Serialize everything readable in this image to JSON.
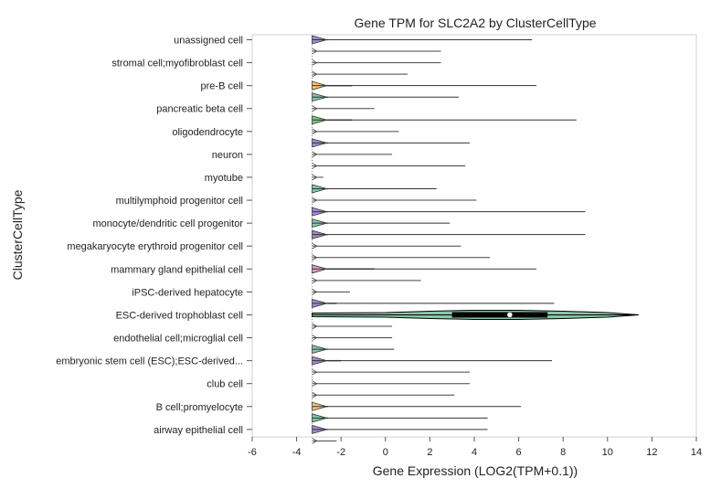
{
  "chart_data": {
    "type": "violin",
    "title": "Gene TPM for SLC2A2 by ClusterCellType",
    "xlabel": "Gene Expression (LOG2(TPM+0.1))",
    "ylabel": "ClusterCellType",
    "xlim": [
      -6,
      14
    ],
    "xticks": [
      -6,
      -4,
      -2,
      0,
      2,
      4,
      6,
      8,
      10,
      12,
      14
    ],
    "xtick_labels": [
      "-6",
      "-4",
      "-2",
      "0",
      "2",
      "4",
      "6",
      "8",
      "10",
      "12",
      "14"
    ],
    "grid": false,
    "labeled_categories": [
      "unassigned cell",
      "stromal cell;myofibroblast cell",
      "pre-B cell",
      "pancreatic beta cell",
      "oligodendrocyte",
      "neuron",
      "myotube",
      "multilymphoid progenitor cell",
      "monocyte/dendritic cell progenitor",
      "megakaryocyte erythroid progenitor cell",
      "mammary gland epithelial cell",
      "iPSC-derived hepatocyte",
      "ESC-derived trophoblast cell",
      "endothelial cell;microglial cell",
      "embryonic stem cell (ESC);ESC-derived...",
      "club cell",
      "B cell;promyelocyte",
      "airway epithelial cell"
    ],
    "rows": [
      {
        "fill": "#a28ad2",
        "spike_x": -2.6,
        "whisker_max": 6.6,
        "labeled": true
      },
      {
        "fill": null,
        "spike_x": null,
        "whisker_max": 2.5
      },
      {
        "fill": null,
        "spike_x": null,
        "whisker_max": 2.5,
        "labeled": true
      },
      {
        "fill": null,
        "spike_x": null,
        "whisker_max": 1.0
      },
      {
        "fill": "#f7c578",
        "spike_x": -1.5,
        "whisker_max": 6.8,
        "labeled": true
      },
      {
        "fill": "#88c6a8",
        "spike_x": -2.6,
        "whisker_max": 3.3
      },
      {
        "fill": null,
        "spike_x": null,
        "whisker_max": -0.5,
        "labeled": true
      },
      {
        "fill": "#79c97c",
        "spike_x": -1.5,
        "whisker_max": 8.6
      },
      {
        "fill": null,
        "spike_x": null,
        "whisker_max": 0.6,
        "labeled": true
      },
      {
        "fill": "#a28ad2",
        "spike_x": -2.6,
        "whisker_max": 3.8
      },
      {
        "fill": null,
        "spike_x": null,
        "whisker_max": 0.3,
        "labeled": true
      },
      {
        "fill": null,
        "spike_x": null,
        "whisker_max": 3.6
      },
      {
        "fill": null,
        "spike_x": null,
        "whisker_max": -2.8,
        "labeled": true
      },
      {
        "fill": "#88c6a8",
        "spike_x": -2.6,
        "whisker_max": 2.3
      },
      {
        "fill": null,
        "spike_x": null,
        "whisker_max": 4.1,
        "labeled": true
      },
      {
        "fill": "#a28ad2",
        "spike_x": -2.6,
        "whisker_max": 9.0
      },
      {
        "fill": "#88c6a8",
        "spike_x": -2.6,
        "whisker_max": 2.9,
        "labeled": true
      },
      {
        "fill": "#a28ad2",
        "spike_x": -2.6,
        "whisker_max": 9.0
      },
      {
        "fill": null,
        "spike_x": null,
        "whisker_max": 3.4,
        "labeled": true
      },
      {
        "fill": null,
        "spike_x": null,
        "whisker_max": 4.7
      },
      {
        "fill": "#d9a0c0",
        "spike_x": -0.5,
        "whisker_max": 6.8,
        "labeled": true
      },
      {
        "fill": null,
        "spike_x": null,
        "whisker_max": 1.6
      },
      {
        "fill": null,
        "spike_x": null,
        "whisker_max": -1.6,
        "labeled": true
      },
      {
        "fill": "#a28ad2",
        "spike_x": -2.2,
        "whisker_max": 7.6
      },
      {
        "fill": "#88c6a8",
        "spike_x": 11.4,
        "whisker_max": 11.4,
        "median": 5.6,
        "q1": 3.0,
        "q3": 7.3,
        "wide": true,
        "labeled": true
      },
      {
        "fill": null,
        "spike_x": null,
        "whisker_max": 0.3
      },
      {
        "fill": null,
        "spike_x": null,
        "whisker_max": 0.3,
        "labeled": true
      },
      {
        "fill": "#88c6a8",
        "spike_x": -2.6,
        "whisker_max": 0.4
      },
      {
        "fill": "#a28ad2",
        "spike_x": -2.0,
        "whisker_max": 7.5,
        "labeled": true
      },
      {
        "fill": null,
        "spike_x": null,
        "whisker_max": 3.8
      },
      {
        "fill": null,
        "spike_x": null,
        "whisker_max": 3.8,
        "labeled": true
      },
      {
        "fill": null,
        "spike_x": null,
        "whisker_max": 3.1
      },
      {
        "fill": "#f7c578",
        "spike_x": -2.6,
        "whisker_max": 6.1,
        "labeled": true
      },
      {
        "fill": "#88c6a8",
        "spike_x": -2.6,
        "whisker_max": 4.6
      },
      {
        "fill": "#a28ad2",
        "spike_x": -2.6,
        "whisker_max": 4.6,
        "labeled": true
      },
      {
        "fill": null,
        "spike_x": null,
        "whisker_max": -2.2
      }
    ],
    "zero_line_x": -3.3
  }
}
